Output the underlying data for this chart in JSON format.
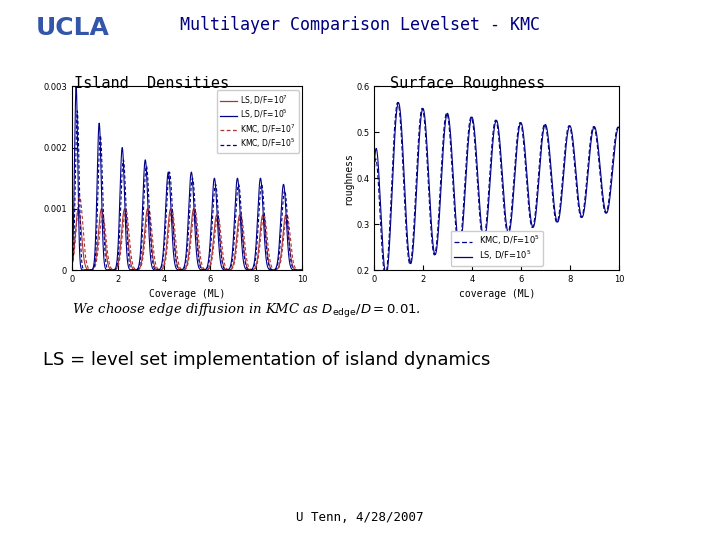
{
  "title": "Multilayer Comparison Levelset - KMC",
  "ucla_color": "#3355aa",
  "title_color": "#000080",
  "left_plot_title": "Island  Densities",
  "right_plot_title": "Surface Roughness",
  "left_xlabel": "Coverage (ML)",
  "right_xlabel": "coverage (ML)",
  "right_ylabel": "roughness",
  "footer": "U Tenn, 4/28/2007",
  "ls_low_color": "#aa3333",
  "ls_high_color": "#000088",
  "kmc_low_color": "#aa3333",
  "kmc_high_color": "#000088",
  "background": "#ffffff",
  "left_yticks": [
    0,
    0.001,
    0.002,
    0.003
  ],
  "left_ytick_labels": [
    "0",
    "0.001",
    "0.002",
    "0.003"
  ],
  "left_xticks": [
    0,
    2,
    4,
    6,
    8,
    10
  ],
  "right_yticks": [
    0.2,
    0.3,
    0.4,
    0.5,
    0.6
  ],
  "right_ytick_labels": [
    "0.2",
    "0.3",
    "0.4",
    "0.5",
    "0.6"
  ],
  "right_xticks": [
    0,
    2,
    4,
    6,
    8,
    10
  ]
}
